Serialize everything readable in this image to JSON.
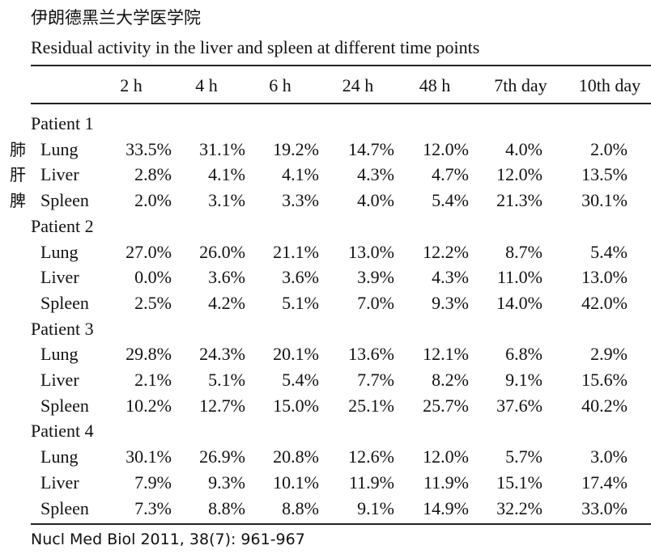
{
  "header": {
    "title": "伊朗德黑兰大学医学院"
  },
  "caption": "Residual activity in the liver and spleen at different time points",
  "table": {
    "columns": [
      "2 h",
      "4 h",
      "6 h",
      "24 h",
      "48 h",
      "7th day",
      "10th day"
    ],
    "groups": [
      {
        "label": "Patient 1",
        "rows": [
          {
            "annotation": "肺",
            "label": "Lung",
            "values": [
              "33.5%",
              "31.1%",
              "19.2%",
              "14.7%",
              "12.0%",
              "4.0%",
              "2.0%"
            ]
          },
          {
            "annotation": "肝",
            "label": "Liver",
            "values": [
              "2.8%",
              "4.1%",
              "4.1%",
              "4.3%",
              "4.7%",
              "12.0%",
              "13.5%"
            ]
          },
          {
            "annotation": "脾",
            "label": "Spleen",
            "values": [
              "2.0%",
              "3.1%",
              "3.3%",
              "4.0%",
              "5.4%",
              "21.3%",
              "30.1%"
            ]
          }
        ]
      },
      {
        "label": "Patient 2",
        "rows": [
          {
            "label": "Lung",
            "values": [
              "27.0%",
              "26.0%",
              "21.1%",
              "13.0%",
              "12.2%",
              "8.7%",
              "5.4%"
            ]
          },
          {
            "label": "Liver",
            "values": [
              "0.0%",
              "3.6%",
              "3.6%",
              "3.9%",
              "4.3%",
              "11.0%",
              "13.0%"
            ]
          },
          {
            "label": "Spleen",
            "values": [
              "2.5%",
              "4.2%",
              "5.1%",
              "7.0%",
              "9.3%",
              "14.0%",
              "42.0%"
            ]
          }
        ]
      },
      {
        "label": "Patient 3",
        "rows": [
          {
            "label": "Lung",
            "values": [
              "29.8%",
              "24.3%",
              "20.1%",
              "13.6%",
              "12.1%",
              "6.8%",
              "2.9%"
            ]
          },
          {
            "label": "Liver",
            "values": [
              "2.1%",
              "5.1%",
              "5.4%",
              "7.7%",
              "8.2%",
              "9.1%",
              "15.6%"
            ]
          },
          {
            "label": "Spleen",
            "values": [
              "10.2%",
              "12.7%",
              "15.0%",
              "25.1%",
              "25.7%",
              "37.6%",
              "40.2%"
            ]
          }
        ]
      },
      {
        "label": "Patient 4",
        "rows": [
          {
            "label": "Lung",
            "values": [
              "30.1%",
              "26.9%",
              "20.8%",
              "12.6%",
              "12.0%",
              "5.7%",
              "3.0%"
            ]
          },
          {
            "label": "Liver",
            "values": [
              "7.9%",
              "9.3%",
              "10.1%",
              "11.9%",
              "11.9%",
              "15.1%",
              "17.4%"
            ]
          },
          {
            "label": "Spleen",
            "values": [
              "7.3%",
              "8.8%",
              "8.8%",
              "9.1%",
              "14.9%",
              "32.2%",
              "33.0%"
            ]
          }
        ]
      }
    ]
  },
  "source": "Nucl Med Biol 2011, 38(7): 961-967"
}
